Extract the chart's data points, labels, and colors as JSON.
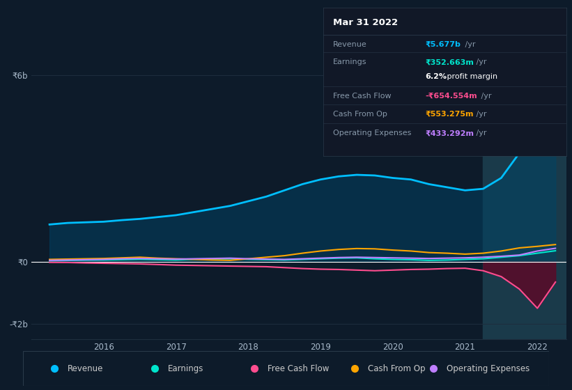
{
  "bg_color": "#0d1b2a",
  "chart_bg": "#0d1b2a",
  "years": [
    2015.25,
    2015.5,
    2015.75,
    2016.0,
    2016.25,
    2016.5,
    2016.75,
    2017.0,
    2017.25,
    2017.5,
    2017.75,
    2018.0,
    2018.25,
    2018.5,
    2018.75,
    2019.0,
    2019.25,
    2019.5,
    2019.75,
    2020.0,
    2020.25,
    2020.5,
    2020.75,
    2021.0,
    2021.25,
    2021.5,
    2021.75,
    2022.0,
    2022.25
  ],
  "revenue": [
    1200,
    1250,
    1270,
    1290,
    1340,
    1380,
    1440,
    1500,
    1600,
    1700,
    1800,
    1950,
    2100,
    2300,
    2500,
    2650,
    2750,
    2800,
    2780,
    2700,
    2650,
    2500,
    2400,
    2300,
    2350,
    2700,
    3500,
    4800,
    5677
  ],
  "earnings": [
    30,
    40,
    50,
    55,
    65,
    75,
    65,
    55,
    75,
    85,
    95,
    75,
    65,
    55,
    75,
    95,
    115,
    125,
    95,
    75,
    65,
    45,
    55,
    75,
    95,
    145,
    195,
    275,
    353
  ],
  "free_cash_flow": [
    -20,
    -25,
    -40,
    -50,
    -60,
    -70,
    -90,
    -110,
    -120,
    -130,
    -140,
    -150,
    -160,
    -190,
    -220,
    -240,
    -250,
    -270,
    -290,
    -270,
    -250,
    -240,
    -220,
    -210,
    -290,
    -480,
    -880,
    -1500,
    -655
  ],
  "cash_from_op": [
    75,
    85,
    95,
    105,
    125,
    145,
    115,
    95,
    75,
    55,
    45,
    95,
    145,
    195,
    275,
    345,
    395,
    425,
    415,
    375,
    345,
    295,
    275,
    245,
    275,
    345,
    445,
    495,
    553
  ],
  "operating_expenses": [
    45,
    55,
    65,
    75,
    95,
    105,
    95,
    85,
    95,
    105,
    115,
    95,
    85,
    75,
    95,
    115,
    135,
    145,
    135,
    125,
    115,
    105,
    115,
    125,
    145,
    175,
    215,
    345,
    433
  ],
  "revenue_color": "#00bfff",
  "earnings_color": "#00e5cc",
  "fcf_color": "#ff4d8f",
  "cashop_color": "#ffa500",
  "opex_color": "#bf7fff",
  "highlight_x": 2021.25,
  "highlight_color": "#1a3a4a",
  "fcf_fill_color": "#5a0a28",
  "revenue_fill_color": "#004466",
  "zero_line_color": "#ffffff",
  "grid_color": "#1e2e3e",
  "ylim_min": -2500,
  "ylim_max": 6800,
  "xlim_min": 2015.0,
  "xlim_max": 2022.4,
  "ytick_labels": [
    "-₹2b",
    "₹0",
    "₹6b"
  ],
  "ytick_values": [
    -2000,
    0,
    6000
  ],
  "xlabel_years": [
    2016,
    2017,
    2018,
    2019,
    2020,
    2021,
    2022
  ],
  "info_title": "Mar 31 2022",
  "info_revenue_label": "Revenue",
  "info_revenue_value": "₹5.677b",
  "info_earnings_label": "Earnings",
  "info_earnings_value": "₹352.663m",
  "info_margin_value": "6.2%",
  "info_fcf_label": "Free Cash Flow",
  "info_fcf_value": "-₹654.554m",
  "info_cashop_label": "Cash From Op",
  "info_cashop_value": "₹553.275m",
  "info_opex_label": "Operating Expenses",
  "info_opex_value": "₹433.292m",
  "info_bg": "#111827",
  "info_border": "#2a3a4a",
  "info_label_color": "#8899aa",
  "info_text_color": "#ffffff",
  "legend_items": [
    "Revenue",
    "Earnings",
    "Free Cash Flow",
    "Cash From Op",
    "Operating Expenses"
  ],
  "legend_colors": [
    "#00bfff",
    "#00e5cc",
    "#ff4d8f",
    "#ffa500",
    "#bf7fff"
  ],
  "legend_bg": "#111827",
  "legend_border": "#2a3a4a"
}
